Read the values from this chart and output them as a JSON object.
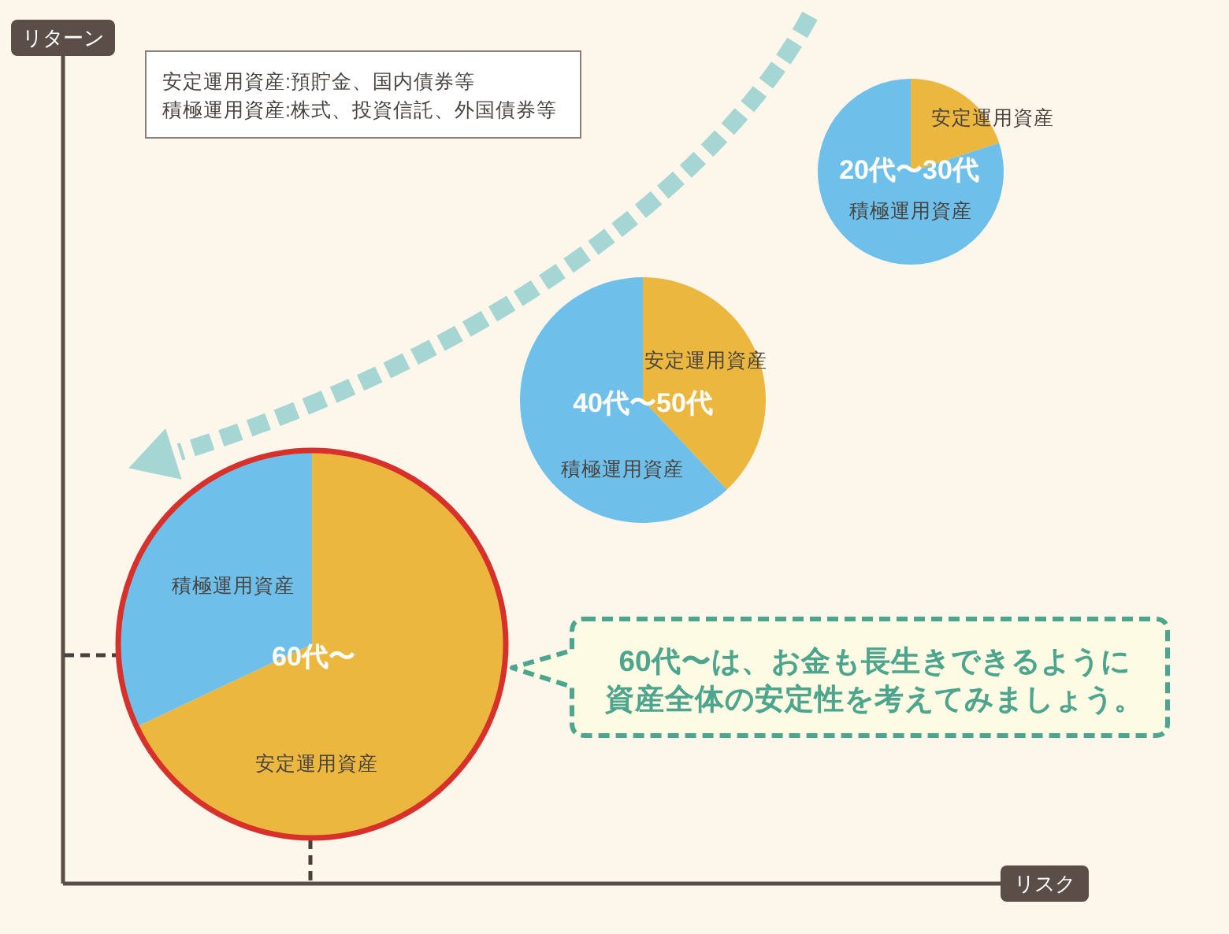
{
  "chart_data": [
    {
      "type": "other",
      "xlabel": "リスク",
      "ylabel": "リターン",
      "annotations": [
        "安定運用資産:預貯金、国内債券等",
        "積極運用資産:株式、投資信託、外国債券等",
        "60代〜は、お金も長生きできるように資産全体の安定性を考えてみましょう。"
      ]
    },
    {
      "type": "pie",
      "title": "20代〜30代",
      "categories": [
        "安定運用資産",
        "積極運用資産"
      ],
      "values": [
        20,
        80
      ],
      "colors": [
        "#ecb73e",
        "#6ebfea"
      ]
    },
    {
      "type": "pie",
      "title": "40代〜50代",
      "categories": [
        "安定運用資産",
        "積極運用資産"
      ],
      "values": [
        38,
        62
      ],
      "colors": [
        "#ecb73e",
        "#6ebfea"
      ]
    },
    {
      "type": "pie",
      "title": "60代〜",
      "categories": [
        "安定運用資産",
        "積極運用資産"
      ],
      "values": [
        68,
        32
      ],
      "colors": [
        "#ecb73e",
        "#6ebfea"
      ]
    }
  ]
}
